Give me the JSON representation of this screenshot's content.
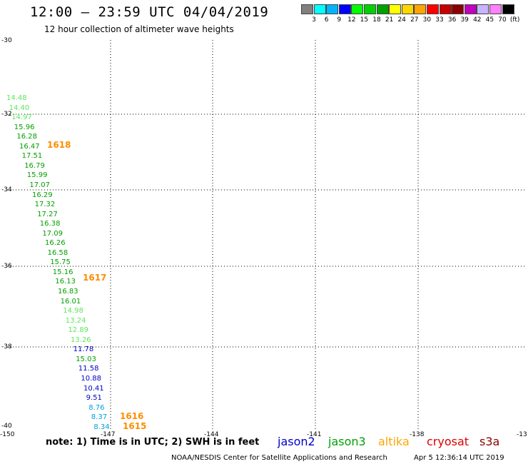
{
  "header": {
    "title": "12:00 — 23:59 UTC 04/04/2019",
    "subtitle": "12 hour collection of altimeter wave heights"
  },
  "colorbar": {
    "swatches": [
      "#808080",
      "#00ffff",
      "#00b4ff",
      "#0000ff",
      "#00ff00",
      "#00d200",
      "#00a000",
      "#ffff00",
      "#ffd700",
      "#ffa500",
      "#ff0000",
      "#c80000",
      "#8b0000",
      "#c000c0",
      "#c8b4ff",
      "#ff80ff",
      "#000000"
    ],
    "labels": [
      "3",
      "6",
      "9",
      "12",
      "15",
      "18",
      "21",
      "24",
      "27",
      "30",
      "33",
      "36",
      "39",
      "42",
      "45",
      "70"
    ],
    "unit": "(ft)"
  },
  "axes": {
    "y_labels": [
      "-30",
      "-32",
      "-34",
      "-36",
      "-38",
      "-40"
    ],
    "x_labels": [
      "-150",
      "-147",
      "-144",
      "-141",
      "-138",
      "-13"
    ]
  },
  "track": [
    {
      "v": "14.48",
      "c": "#5fe65f"
    },
    {
      "v": "14.40",
      "c": "#5fe65f"
    },
    {
      "v": "14.97",
      "c": "#5fe65f"
    },
    {
      "v": "15.96",
      "c": "#00a000"
    },
    {
      "v": "16.28",
      "c": "#00a000"
    },
    {
      "v": "16.47",
      "c": "#00a000"
    },
    {
      "v": "17.51",
      "c": "#00a000"
    },
    {
      "v": "16.79",
      "c": "#00a000"
    },
    {
      "v": "15.99",
      "c": "#00a000"
    },
    {
      "v": "17.07",
      "c": "#00a000"
    },
    {
      "v": "16.29",
      "c": "#00a000"
    },
    {
      "v": "17.32",
      "c": "#00a000"
    },
    {
      "v": "17.27",
      "c": "#00a000"
    },
    {
      "v": "16.38",
      "c": "#00a000"
    },
    {
      "v": "17.09",
      "c": "#00a000"
    },
    {
      "v": "16.26",
      "c": "#00a000"
    },
    {
      "v": "16.58",
      "c": "#00a000"
    },
    {
      "v": "15.75",
      "c": "#00a000"
    },
    {
      "v": "15.16",
      "c": "#00a000"
    },
    {
      "v": "16.13",
      "c": "#00a000"
    },
    {
      "v": "16.83",
      "c": "#00a000"
    },
    {
      "v": "16.01",
      "c": "#00a000"
    },
    {
      "v": "14.98",
      "c": "#5fe65f"
    },
    {
      "v": "13.24",
      "c": "#5fe65f"
    },
    {
      "v": "12.89",
      "c": "#5fe65f"
    },
    {
      "v": "13.26",
      "c": "#5fe65f"
    },
    {
      "v": "11.78",
      "c": "#0000c8"
    },
    {
      "v": "15.03",
      "c": "#00a000"
    },
    {
      "v": "11.58",
      "c": "#0000c8"
    },
    {
      "v": "10.88",
      "c": "#0000c8"
    },
    {
      "v": "10.41",
      "c": "#0000c8"
    },
    {
      "v": "9.51",
      "c": "#0000c8"
    },
    {
      "v": "8.76",
      "c": "#00a0e0"
    },
    {
      "v": "8.37",
      "c": "#00a0e0"
    },
    {
      "v": "8.34",
      "c": "#00a0e0"
    }
  ],
  "passes": [
    "1618",
    "1617",
    "1616",
    "1615"
  ],
  "note": "note: 1) Time is in UTC; 2) SWH is in feet",
  "legend": [
    {
      "name": "jason2",
      "color": "#0000c8"
    },
    {
      "name": "jason3",
      "color": "#00a000"
    },
    {
      "name": "altika",
      "color": "#ffa500"
    },
    {
      "name": "cryosat",
      "color": "#e00000"
    },
    {
      "name": "s3a",
      "color": "#8b0000"
    }
  ],
  "footer": {
    "credit": "NOAA/NESDIS Center for Satellite Applications and Research",
    "timestamp": "Apr  5 12:36:14 UTC 2019"
  }
}
